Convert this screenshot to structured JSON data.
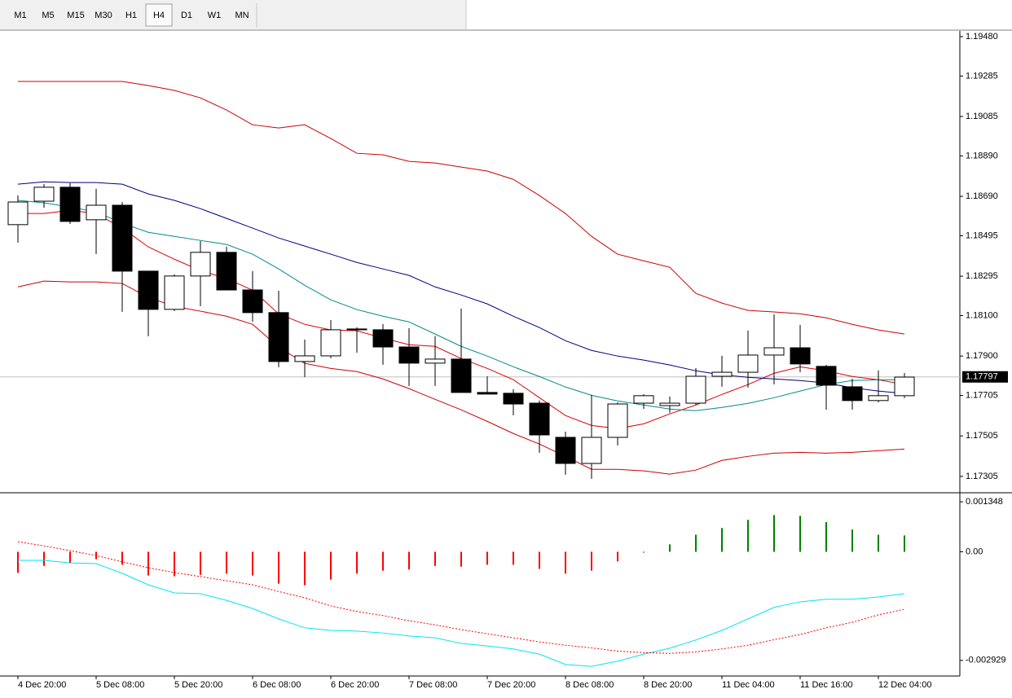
{
  "toolbar": {
    "timeframes": [
      "M1",
      "M5",
      "M15",
      "M30",
      "H1",
      "H4",
      "D1",
      "W1",
      "MN"
    ],
    "active": "H4"
  },
  "chart_data": [
    {
      "type": "candlestick",
      "categories": [
        "4 Dec 20:00",
        null,
        null,
        "5 Dec 08:00",
        null,
        null,
        "5 Dec 20:00",
        null,
        null,
        "6 Dec 08:00",
        null,
        null,
        "6 Dec 20:00",
        null,
        null,
        "7 Dec 08:00",
        null,
        null,
        "7 Dec 20:00",
        null,
        null,
        "8 Dec 08:00",
        null,
        null,
        "8 Dec 20:00",
        null,
        null,
        "11 Dec 04:00",
        null,
        null,
        "11 Dec 16:00",
        null,
        null,
        "12 Dec 04:00",
        null
      ],
      "open": [
        1.1855,
        1.18666,
        1.18735,
        1.18574,
        1.18646,
        1.1832,
        1.18131,
        1.18296,
        1.18413,
        1.18227,
        1.18115,
        1.17873,
        1.17901,
        1.1803,
        1.1803,
        1.17945,
        1.17865,
        1.17885,
        1.1772,
        1.17716,
        1.17667,
        1.17498,
        1.17369,
        1.17498,
        1.17667,
        1.17655,
        1.17667,
        1.178,
        1.1782,
        1.17905,
        1.17941,
        1.17849,
        1.17748,
        1.1768,
        1.17704
      ],
      "high": [
        1.18695,
        1.18751,
        1.18755,
        1.18727,
        1.18662,
        1.1832,
        1.18304,
        1.18469,
        1.18441,
        1.1832,
        1.18223,
        1.17982,
        1.18078,
        1.18042,
        1.18058,
        1.18038,
        1.17998,
        1.18135,
        1.178,
        1.17736,
        1.1768,
        1.17526,
        1.17708,
        1.17671,
        1.17712,
        1.177,
        1.17841,
        1.17901,
        1.18026,
        1.18106,
        1.18054,
        1.17857,
        1.17788,
        1.17829,
        1.17816
      ],
      "low": [
        1.18461,
        1.18634,
        1.18554,
        1.18405,
        1.18119,
        1.17998,
        1.18123,
        1.18147,
        1.18227,
        1.1807,
        1.17845,
        1.17796,
        1.17889,
        1.17917,
        1.17857,
        1.17752,
        1.17752,
        1.1772,
        1.17712,
        1.17607,
        1.17422,
        1.17313,
        1.17293,
        1.17458,
        1.17639,
        1.17619,
        1.17659,
        1.17748,
        1.17744,
        1.1776,
        1.1782,
        1.17635,
        1.17635,
        1.17671,
        1.17692
      ],
      "close": [
        1.18662,
        1.18735,
        1.18566,
        1.18646,
        1.1832,
        1.18131,
        1.18296,
        1.18413,
        1.18227,
        1.18115,
        1.17873,
        1.17901,
        1.1803,
        1.18034,
        1.17945,
        1.17865,
        1.17885,
        1.1772,
        1.17712,
        1.17663,
        1.1751,
        1.17369,
        1.17498,
        1.17663,
        1.17704,
        1.17667,
        1.178,
        1.1782,
        1.17905,
        1.17941,
        1.17861,
        1.17756,
        1.1768,
        1.17704,
        1.17796
      ],
      "up_color": "#ffffff",
      "down_color": "#000000",
      "series": [
        {
          "color": "#cc0000",
          "values": [
            1.19258,
            1.19258,
            1.19258,
            1.19258,
            1.19258,
            1.19238,
            1.19214,
            1.19177,
            1.19117,
            1.19044,
            1.19028,
            1.19044,
            1.18976,
            1.18903,
            1.18895,
            1.18863,
            1.18855,
            1.18835,
            1.18815,
            1.18774,
            1.18694,
            1.18605,
            1.18492,
            1.18404,
            1.18371,
            1.18339,
            1.1821,
            1.18162,
            1.18126,
            1.18118,
            1.18109,
            1.18089,
            1.18057,
            1.18029,
            1.18009
          ]
        },
        {
          "color": "#cc0000",
          "values": [
            1.18242,
            1.18271,
            1.18267,
            1.18267,
            1.18259,
            1.1819,
            1.18146,
            1.18122,
            1.18097,
            1.18057,
            1.17944,
            1.17864,
            1.17839,
            1.17823,
            1.17787,
            1.17739,
            1.17686,
            1.17634,
            1.17577,
            1.17517,
            1.17465,
            1.17404,
            1.1734,
            1.1734,
            1.17332,
            1.17316,
            1.17336,
            1.17384,
            1.17404,
            1.1742,
            1.17424,
            1.1742,
            1.17424,
            1.17432,
            1.1744
          ]
        },
        {
          "color": "#dd0000",
          "values": [
            1.18605,
            1.18605,
            1.18621,
            1.18605,
            1.18533,
            1.1844,
            1.18379,
            1.18323,
            1.18283,
            1.18226,
            1.18109,
            1.18057,
            1.18029,
            1.18025,
            1.17989,
            1.17956,
            1.17948,
            1.17888,
            1.17839,
            1.17783,
            1.17694,
            1.17606,
            1.17557,
            1.17541,
            1.17565,
            1.17614,
            1.17658,
            1.1771,
            1.17759,
            1.17815,
            1.17847,
            1.17827,
            1.17799,
            1.17783,
            1.17759
          ]
        },
        {
          "color": "#008b8b",
          "values": [
            1.1867,
            1.18658,
            1.18637,
            1.18613,
            1.18557,
            1.18512,
            1.18492,
            1.18472,
            1.18452,
            1.18404,
            1.18331,
            1.1825,
            1.18178,
            1.1813,
            1.18097,
            1.18069,
            1.18009,
            1.17948,
            1.179,
            1.17847,
            1.17799,
            1.17747,
            1.17706,
            1.17678,
            1.17658,
            1.17638,
            1.1763,
            1.17646,
            1.17666,
            1.17694,
            1.17727,
            1.17759,
            1.17779,
            1.17783,
            1.17783
          ]
        },
        {
          "color": "#000080",
          "values": [
            1.1875,
            1.18762,
            1.18758,
            1.18758,
            1.1875,
            1.18702,
            1.1867,
            1.18629,
            1.18581,
            1.18533,
            1.18484,
            1.18444,
            1.18404,
            1.18363,
            1.18331,
            1.18299,
            1.18242,
            1.18202,
            1.18158,
            1.18097,
            1.18041,
            1.17976,
            1.17928,
            1.179,
            1.1788,
            1.17856,
            1.17827,
            1.17807,
            1.17795,
            1.17787,
            1.17779,
            1.17767,
            1.17743,
            1.17727,
            1.17715
          ]
        }
      ],
      "last_price": 1.17797,
      "ylim": [
        1.17228,
        1.19508
      ],
      "yticks": [
        {
          "value": 1.1948,
          "label": "1.19480"
        },
        1.19285,
        1.19085,
        {
          "value": 1.1889,
          "label": "1.18890"
        },
        {
          "value": 1.1869,
          "label": "1.18690"
        },
        1.18495,
        1.18295,
        {
          "value": 1.181,
          "label": "1.18100"
        },
        {
          "value": 1.179,
          "label": "1.17900"
        },
        1.17705,
        1.17505,
        1.17305
      ]
    },
    {
      "type": "histogram-oscillator",
      "values": [
        -0.00057,
        -0.00038,
        -0.00031,
        -0.0002,
        -0.00035,
        -0.00064,
        -0.00066,
        -0.00062,
        -0.00059,
        -0.00064,
        -0.00086,
        -0.0009,
        -0.00075,
        -0.00059,
        -0.00051,
        -0.00048,
        -0.00038,
        -0.0004,
        -0.00035,
        -0.00035,
        -0.00046,
        -0.00059,
        -0.00051,
        -0.00026,
        -2e-05,
        0.0002,
        0.00046,
        0.00064,
        0.00086,
        0.00099,
        0.00097,
        0.0008,
        0.0006,
        0.00046,
        0.00044
      ],
      "up_color": "#008000",
      "down_color": "#ff0000",
      "series": [
        {
          "color": "#00e5ee",
          "dashed": false,
          "values": [
            -0.00023,
            -0.00023,
            -0.0003,
            -0.00032,
            -0.00058,
            -0.00089,
            -0.00111,
            -0.00113,
            -0.00131,
            -0.00153,
            -0.00181,
            -0.00205,
            -0.00212,
            -0.00214,
            -0.00219,
            -0.00227,
            -0.00232,
            -0.00247,
            -0.00254,
            -0.00262,
            -0.00276,
            -0.00304,
            -0.00309,
            -0.00295,
            -0.00276,
            -0.0026,
            -0.00238,
            -0.00212,
            -0.00181,
            -0.0015,
            -0.00135,
            -0.00128,
            -0.00128,
            -0.00122,
            -0.00113
          ]
        },
        {
          "color": "#ff0000",
          "dashed": true,
          "values": [
            0.00027,
            0.00016,
            3e-05,
            -0.0001,
            -0.00027,
            -0.00043,
            -0.00056,
            -0.00067,
            -0.00078,
            -0.00089,
            -0.00107,
            -0.00124,
            -0.00146,
            -0.00161,
            -0.00172,
            -0.00186,
            -0.00197,
            -0.0021,
            -0.00221,
            -0.00232,
            -0.00243,
            -0.00252,
            -0.00259,
            -0.00268,
            -0.00272,
            -0.00274,
            -0.0027,
            -0.00262,
            -0.00252,
            -0.00237,
            -0.00223,
            -0.00205,
            -0.0019,
            -0.0017,
            -0.00155
          ]
        }
      ],
      "ylim": [
        -0.00335,
        0.00157
      ],
      "yticks": [
        0.001348,
        {
          "value": 0,
          "label": "0.00"
        },
        -0.002929
      ]
    }
  ]
}
